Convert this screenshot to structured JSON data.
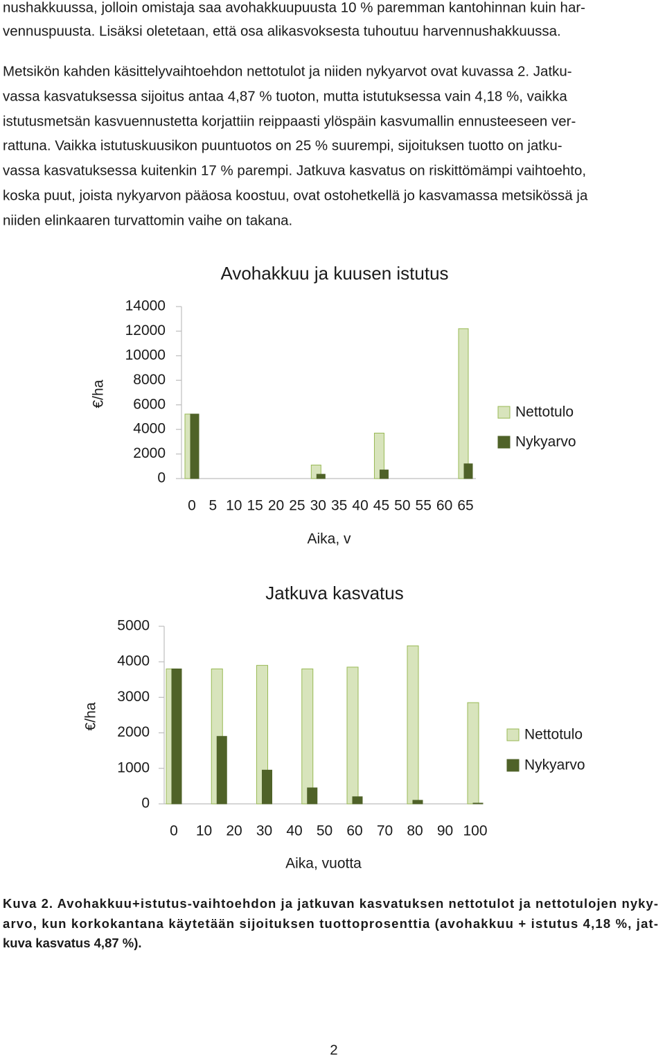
{
  "body": {
    "paragraphs": [
      {
        "lines": [
          "nushakkuussa, jolloin omistaja saa avohakkuupuusta 10 % paremman kantohinnan kuin har-",
          "vennuspuusta. Lisäksi oletetaan, että osa alikasvoksesta tuhoutuu harvennushakkuussa."
        ]
      },
      {
        "lines": [
          "Metsikön kahden käsittelyvaihtoehdon nettotulot ja niiden nykyarvot ovat kuvassa 2. Jatku-",
          "vassa kasvatuksessa sijoitus antaa 4,87 % tuoton, mutta istutuksessa vain 4,18 %, vaikka",
          "istutusmetsän kasvuennustetta korjattiin reippaasti ylöspäin kasvumallin ennusteeseen ver-",
          "rattuna. Vaikka istutuskuusikon puuntuotos on 25 % suurempi, sijoituksen tuotto on jatku-",
          "vassa kasvatuksessa kuitenkin 17 % parempi. Jatkuva kasvatus on riskittömämpi vaihtoehto,",
          "koska puut, joista nykyarvon pääosa koostuu, ovat ostohetkellä jo kasvamassa metsikössä ja",
          "niiden elinkaaren turvattomin vaihe on takana."
        ]
      }
    ]
  },
  "chart_data": [
    {
      "type": "bar",
      "title": "Avohakkuu ja kuusen istutus",
      "x_label": "Aika, v",
      "y_label": "€/ha",
      "x": [
        0,
        30,
        45,
        65
      ],
      "xlim": [
        0,
        65
      ],
      "xticks": [
        0,
        5,
        10,
        15,
        20,
        25,
        30,
        35,
        40,
        45,
        50,
        55,
        60,
        65
      ],
      "ylim": [
        0,
        14000
      ],
      "yticks": [
        0,
        2000,
        4000,
        6000,
        8000,
        10000,
        12000,
        14000
      ],
      "legend": "right",
      "series": [
        {
          "name": "Nettotulo",
          "color": "#d8e4bc",
          "values": [
            5250,
            1100,
            3700,
            12200
          ]
        },
        {
          "name": "Nykyarvo",
          "color": "#4f6228",
          "values": [
            5250,
            350,
            700,
            1200
          ]
        }
      ]
    },
    {
      "type": "bar",
      "title": "Jatkuva kasvatus",
      "x_label": "Aika, vuotta",
      "y_label": "€/ha",
      "x": [
        0,
        15,
        30,
        45,
        60,
        80,
        100
      ],
      "xlim": [
        0,
        100
      ],
      "xticks": [
        0,
        10,
        20,
        30,
        40,
        50,
        60,
        70,
        80,
        90,
        100
      ],
      "ylim": [
        0,
        5000
      ],
      "yticks": [
        0,
        1000,
        2000,
        3000,
        4000,
        5000
      ],
      "legend": "right",
      "series": [
        {
          "name": "Nettotulo",
          "color": "#d8e4bc",
          "values": [
            3800,
            3800,
            3900,
            3800,
            3850,
            4450,
            2850
          ]
        },
        {
          "name": "Nykyarvo",
          "color": "#4f6228",
          "values": [
            3800,
            1900,
            950,
            450,
            200,
            100,
            20
          ]
        }
      ]
    }
  ],
  "caption": {
    "lines": [
      "Kuva 2. Avohakkuu+istutus-vaihtoehdon ja jatkuvan kasvatuksen nettotulot ja nettotulojen nyky-",
      "arvo, kun korkokantana käytetään sijoituksen tuottoprosenttia (avohakkuu + istutus 4,18 %, jat-",
      "kuva kasvatus 4,87 %)."
    ]
  },
  "page_number": "2"
}
